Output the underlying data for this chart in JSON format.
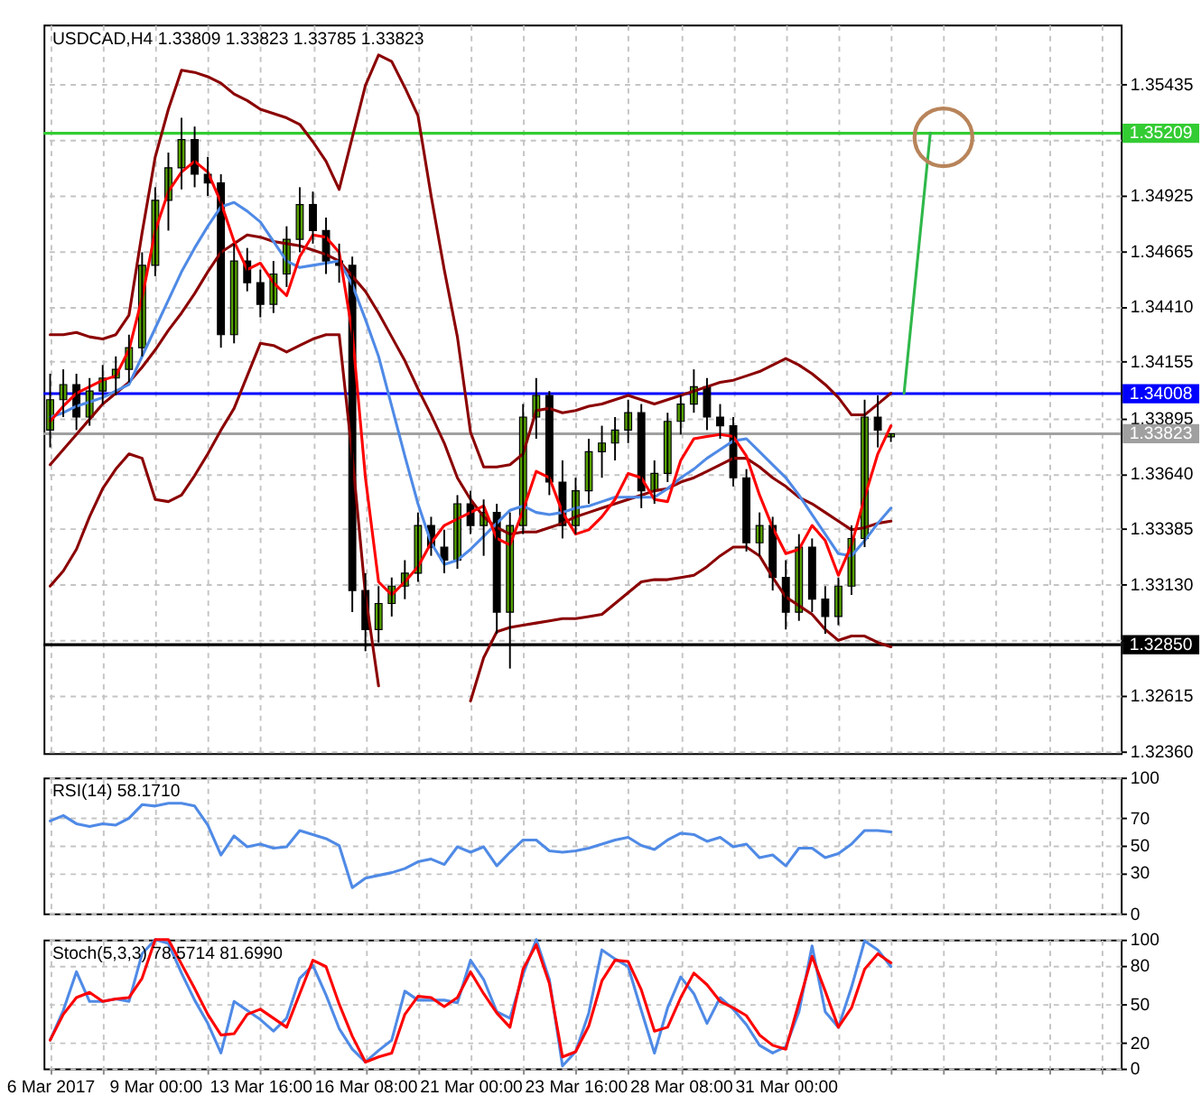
{
  "chart_data": [
    {
      "type": "candlestick",
      "title": "USDCAD,H4  1.33809 1.33823 1.33785 1.33823",
      "categories": [
        null,
        null,
        null,
        null,
        null,
        null,
        null,
        null,
        null,
        null,
        null,
        null,
        null,
        null,
        null,
        null,
        null,
        null,
        null,
        null,
        null,
        null,
        null,
        null,
        null,
        null,
        null,
        null,
        null,
        null,
        null,
        null,
        null,
        null,
        null,
        null,
        null,
        null,
        null,
        null,
        null,
        null,
        null,
        null,
        null,
        null,
        null,
        null,
        null,
        null,
        null,
        null,
        null,
        null,
        null,
        null,
        null,
        null,
        null,
        null,
        null,
        null,
        null,
        null,
        null,
        null,
        null,
        null,
        null,
        null,
        null,
        null,
        null,
        null,
        null,
        null,
        null,
        null,
        null,
        null,
        null,
        null
      ],
      "ohlc": [
        [
          1.3384,
          1.341,
          1.3376,
          1.3398
        ],
        [
          1.3398,
          1.3412,
          1.339,
          1.3405
        ],
        [
          1.3405,
          1.341,
          1.3384,
          1.339
        ],
        [
          1.339,
          1.3408,
          1.3386,
          1.3402
        ],
        [
          1.3402,
          1.3414,
          1.3396,
          1.3408
        ],
        [
          1.3408,
          1.3418,
          1.34,
          1.3412
        ],
        [
          1.3412,
          1.3428,
          1.3406,
          1.3422
        ],
        [
          1.3422,
          1.3466,
          1.3418,
          1.346
        ],
        [
          1.346,
          1.3496,
          1.3455,
          1.349
        ],
        [
          1.349,
          1.3512,
          1.3476,
          1.3505
        ],
        [
          1.3505,
          1.3528,
          1.3495,
          1.3518
        ],
        [
          1.3518,
          1.3524,
          1.3496,
          1.3502
        ],
        [
          1.3502,
          1.351,
          1.3492,
          1.3498
        ],
        [
          1.3498,
          1.3502,
          1.3422,
          1.3428
        ],
        [
          1.3428,
          1.347,
          1.3424,
          1.3462
        ],
        [
          1.3462,
          1.3468,
          1.3448,
          1.3452
        ],
        [
          1.3452,
          1.3458,
          1.3436,
          1.3442
        ],
        [
          1.3442,
          1.3462,
          1.3438,
          1.3456
        ],
        [
          1.3456,
          1.3478,
          1.345,
          1.3472
        ],
        [
          1.3472,
          1.3496,
          1.3466,
          1.3488
        ],
        [
          1.3488,
          1.3494,
          1.347,
          1.3476
        ],
        [
          1.3476,
          1.3482,
          1.3456,
          1.3462
        ],
        [
          1.3462,
          1.347,
          1.3452,
          1.346
        ],
        [
          1.346,
          1.3464,
          1.33,
          1.331
        ],
        [
          1.331,
          1.3318,
          1.3282,
          1.3292
        ],
        [
          1.3292,
          1.3312,
          1.3286,
          1.3304
        ],
        [
          1.3304,
          1.3316,
          1.3298,
          1.3312
        ],
        [
          1.3312,
          1.3324,
          1.3306,
          1.3318
        ],
        [
          1.3318,
          1.3346,
          1.3314,
          1.334
        ],
        [
          1.334,
          1.3344,
          1.3326,
          1.333
        ],
        [
          1.333,
          1.3338,
          1.3318,
          1.3324
        ],
        [
          1.3324,
          1.3354,
          1.332,
          1.335
        ],
        [
          1.335,
          1.3356,
          1.3336,
          1.334
        ],
        [
          1.334,
          1.3352,
          1.3326,
          1.3346
        ],
        [
          1.3346,
          1.335,
          1.329,
          1.33
        ],
        [
          1.33,
          1.3346,
          1.3274,
          1.334
        ],
        [
          1.334,
          1.3396,
          1.3336,
          1.339
        ],
        [
          1.339,
          1.3408,
          1.338,
          1.34
        ],
        [
          1.34,
          1.3402,
          1.3354,
          1.336
        ],
        [
          1.336,
          1.337,
          1.3334,
          1.334
        ],
        [
          1.334,
          1.3362,
          1.3336,
          1.3356
        ],
        [
          1.3356,
          1.338,
          1.335,
          1.3374
        ],
        [
          1.3374,
          1.3386,
          1.3362,
          1.3378
        ],
        [
          1.3378,
          1.339,
          1.337,
          1.3384
        ],
        [
          1.3384,
          1.3398,
          1.3378,
          1.3392
        ],
        [
          1.3392,
          1.3396,
          1.3348,
          1.3356
        ],
        [
          1.3356,
          1.337,
          1.335,
          1.3364
        ],
        [
          1.3364,
          1.3392,
          1.336,
          1.3388
        ],
        [
          1.3388,
          1.34,
          1.3382,
          1.3396
        ],
        [
          1.3396,
          1.3412,
          1.3392,
          1.3404
        ],
        [
          1.3404,
          1.3408,
          1.3384,
          1.339
        ],
        [
          1.339,
          1.3396,
          1.338,
          1.3386
        ],
        [
          1.3386,
          1.339,
          1.3358,
          1.3362
        ],
        [
          1.3362,
          1.3366,
          1.3328,
          1.3332
        ],
        [
          1.3332,
          1.3346,
          1.3326,
          1.334
        ],
        [
          1.334,
          1.3344,
          1.331,
          1.3316
        ],
        [
          1.3316,
          1.3324,
          1.3292,
          1.33
        ],
        [
          1.33,
          1.3336,
          1.3296,
          1.333
        ],
        [
          1.333,
          1.3334,
          1.33,
          1.3306
        ],
        [
          1.3306,
          1.3312,
          1.329,
          1.3298
        ],
        [
          1.3298,
          1.3316,
          1.3294,
          1.3312
        ],
        [
          1.3312,
          1.334,
          1.3308,
          1.3334
        ],
        [
          1.3334,
          1.3398,
          1.333,
          1.339
        ],
        [
          1.339,
          1.34,
          1.3376,
          1.3384
        ],
        [
          1.33809,
          1.33823,
          1.33785,
          1.33823
        ],
        null,
        null,
        null,
        null,
        null,
        null,
        null,
        null,
        null,
        null,
        null,
        null,
        null,
        null,
        null,
        null,
        null
      ],
      "colors": [
        "#55a000",
        "#55a000",
        "#000000",
        "#55a000",
        "#55a000",
        "#55a000",
        "#55a000",
        "#55a000",
        "#55a000",
        "#55a000",
        "#55a000",
        "#000000",
        "#000000",
        "#000000",
        "#55a000",
        "#000000",
        "#000000",
        "#55a000",
        "#55a000",
        "#55a000",
        "#000000",
        "#000000",
        "#000000",
        "#000000",
        "#000000",
        "#55a000",
        "#55a000",
        "#55a000",
        "#55a000",
        "#000000",
        "#000000",
        "#55a000",
        "#000000",
        "#55a000",
        "#000000",
        "#55a000",
        "#55a000",
        "#55a000",
        "#000000",
        "#000000",
        "#55a000",
        "#55a000",
        "#55a000",
        "#55a000",
        "#55a000",
        "#000000",
        "#55a000",
        "#55a000",
        "#55a000",
        "#55a000",
        "#000000",
        "#000000",
        "#000000",
        "#000000",
        "#55a000",
        "#000000",
        "#000000",
        "#55a000",
        "#000000",
        "#000000",
        "#55a000",
        "#55a000",
        "#55a000",
        "#000000",
        "#55a000",
        null,
        null,
        null,
        null,
        null,
        null,
        null,
        null,
        null,
        null,
        null,
        null,
        null,
        null,
        null,
        null,
        null
      ],
      "series": [
        {
          "type": "line",
          "color": "#8b0000",
          "values": [
            1.3428,
            1.3428,
            1.3429,
            1.3427,
            1.3426,
            1.3428,
            1.3437,
            1.3475,
            1.351,
            1.3532,
            1.355,
            1.3549,
            1.3547,
            1.3544,
            1.3539,
            1.3536,
            1.3532,
            1.353,
            1.3528,
            1.3525,
            1.3517,
            1.3508,
            1.3495,
            1.3519,
            1.3543,
            1.3557,
            1.3554,
            1.3542,
            1.3529,
            1.3492,
            1.3458,
            1.3427,
            1.3383,
            1.3367,
            1.3367,
            1.3368,
            1.3373,
            1.3393,
            1.3394,
            1.3392,
            1.3393,
            1.3395,
            1.3396,
            1.3398,
            1.34,
            1.3398,
            1.3396,
            1.3398,
            1.34,
            1.3402,
            1.3404,
            1.3406,
            1.3407,
            1.3409,
            1.3411,
            1.3414,
            1.3417,
            1.3414,
            1.341,
            1.3405,
            1.3399,
            1.3391,
            1.3391,
            1.3396,
            1.3401,
            null,
            null,
            null,
            null,
            null,
            null,
            null,
            null,
            null,
            null,
            null,
            null,
            null,
            null,
            null,
            null,
            null
          ]
        },
        {
          "type": "line",
          "color": "#8b0000",
          "values": [
            1.3312,
            1.3319,
            1.3329,
            1.3344,
            1.3357,
            1.3366,
            1.3373,
            1.3371,
            1.3352,
            1.3351,
            1.3354,
            1.3363,
            1.3373,
            1.3384,
            1.3394,
            1.3409,
            1.3424,
            1.3423,
            1.342,
            1.3423,
            1.3426,
            1.3428,
            1.3428,
            1.3372,
            1.3308,
            1.3266,
            null,
            null,
            null,
            null,
            null,
            null,
            1.3259,
            1.3279,
            1.3291,
            1.3293,
            1.3294,
            1.3295,
            1.3296,
            1.3297,
            1.3297,
            1.3298,
            1.3299,
            1.3304,
            1.3309,
            1.3314,
            1.3315,
            1.3315,
            1.3316,
            1.3317,
            1.3321,
            1.3326,
            1.333,
            1.333,
            1.3326,
            1.3316,
            1.3307,
            1.3303,
            1.3299,
            1.3292,
            1.3287,
            1.3289,
            1.3289,
            1.3286,
            1.3284,
            null,
            null,
            null,
            null,
            null,
            null,
            null,
            null,
            null,
            null,
            null,
            null,
            null,
            null,
            null,
            null,
            null
          ]
        },
        {
          "type": "line",
          "color": "#8b0000",
          "values": [
            1.3368,
            1.3375,
            1.3382,
            1.3389,
            1.3396,
            1.3401,
            1.3406,
            1.3413,
            1.3421,
            1.343,
            1.3438,
            1.3447,
            1.3457,
            1.3466,
            1.347,
            1.3474,
            1.3473,
            1.3471,
            1.347,
            1.3469,
            1.3467,
            1.3465,
            1.3462,
            1.3455,
            1.3448,
            1.3438,
            1.3427,
            1.3416,
            1.3403,
            1.3391,
            1.3378,
            1.3362,
            1.3352,
            1.3344,
            1.3339,
            1.3336,
            1.3337,
            1.3337,
            1.3339,
            1.3341,
            1.3344,
            1.3346,
            1.3348,
            1.335,
            1.3352,
            1.3354,
            1.3356,
            1.3357,
            1.336,
            1.3362,
            1.3365,
            1.3368,
            1.3371,
            1.3371,
            1.3367,
            1.3362,
            1.3358,
            1.3353,
            1.335,
            1.3346,
            1.3342,
            1.3338,
            1.3339,
            1.3341,
            1.3342,
            null,
            null,
            null,
            null,
            null,
            null,
            null,
            null,
            null,
            null,
            null,
            null,
            null,
            null,
            null,
            null,
            null
          ]
        },
        {
          "type": "line",
          "color": "#4f8ae6",
          "values": [
            1.339,
            1.3392,
            1.3395,
            1.3397,
            1.3399,
            1.3402,
            1.3405,
            1.3418,
            1.3431,
            1.3444,
            1.3457,
            1.3468,
            1.3478,
            1.3487,
            1.3489,
            1.3485,
            1.348,
            1.3471,
            1.3462,
            1.3459,
            1.346,
            1.3461,
            1.3462,
            1.3451,
            1.3435,
            1.3418,
            1.3395,
            1.3372,
            1.335,
            1.3332,
            1.3322,
            1.3324,
            1.3329,
            1.3335,
            1.3341,
            1.3347,
            1.3349,
            1.3346,
            1.3345,
            1.3346,
            1.3348,
            1.3349,
            1.3351,
            1.3353,
            1.3353,
            1.3353,
            1.3353,
            1.3357,
            1.3362,
            1.3366,
            1.3371,
            1.3375,
            1.3379,
            1.338,
            1.3374,
            1.3368,
            1.3362,
            1.3354,
            1.3345,
            1.3336,
            1.3327,
            1.3326,
            1.3333,
            1.3341,
            1.3348,
            null,
            null,
            null,
            null,
            null,
            null,
            null,
            null,
            null,
            null,
            null,
            null,
            null,
            null,
            null,
            null,
            null
          ]
        },
        {
          "type": "line",
          "color": "#ff0000",
          "values": [
            1.3388,
            1.3395,
            1.3401,
            1.3404,
            1.3407,
            1.3409,
            1.3421,
            1.3445,
            1.3476,
            1.3494,
            1.3503,
            1.3508,
            1.3503,
            1.3489,
            1.3471,
            1.3458,
            1.3461,
            1.3452,
            1.3446,
            1.3464,
            1.3474,
            1.3473,
            1.3466,
            1.3429,
            1.3362,
            1.3314,
            1.3308,
            1.3314,
            1.3321,
            1.3332,
            1.334,
            1.3343,
            1.3346,
            1.3349,
            1.3334,
            1.3331,
            1.3347,
            1.3365,
            1.3362,
            1.3346,
            1.3336,
            1.3338,
            1.3344,
            1.3352,
            1.3364,
            1.3362,
            1.3352,
            1.3351,
            1.337,
            1.338,
            1.3381,
            1.3382,
            1.3381,
            1.3372,
            1.3354,
            1.3339,
            1.3327,
            1.3329,
            1.334,
            1.3333,
            1.3317,
            1.3331,
            1.3353,
            1.3373,
            1.3386,
            null,
            null,
            null,
            null,
            null,
            null,
            null,
            null,
            null,
            null,
            null,
            null,
            null,
            null,
            null,
            null,
            null
          ]
        },
        {
          "type": "line",
          "color": "#2fb84a",
          "values": [
            null,
            null,
            null,
            null,
            null,
            null,
            null,
            null,
            null,
            null,
            null,
            null,
            null,
            null,
            null,
            null,
            null,
            null,
            null,
            null,
            null,
            null,
            null,
            null,
            null,
            null,
            null,
            null,
            null,
            null,
            null,
            null,
            null,
            null,
            null,
            null,
            null,
            null,
            null,
            null,
            null,
            null,
            null,
            null,
            null,
            null,
            null,
            null,
            null,
            null,
            null,
            null,
            null,
            null,
            null,
            null,
            null,
            null,
            null,
            null,
            null,
            null,
            null,
            null,
            null,
            1.3401,
            1.3461,
            1.3521,
            null,
            null,
            null,
            null,
            null,
            null,
            null,
            null,
            null,
            null,
            null,
            null,
            null,
            null
          ]
        },
        {
          "type": "scatter",
          "color": "#b8845a",
          "marker": "circle",
          "values": [
            null,
            null,
            null,
            null,
            null,
            null,
            null,
            null,
            null,
            null,
            null,
            null,
            null,
            null,
            null,
            null,
            null,
            null,
            null,
            null,
            null,
            null,
            null,
            null,
            null,
            null,
            null,
            null,
            null,
            null,
            null,
            null,
            null,
            null,
            null,
            null,
            null,
            null,
            null,
            null,
            null,
            null,
            null,
            null,
            null,
            null,
            null,
            null,
            null,
            null,
            null,
            null,
            null,
            null,
            null,
            null,
            null,
            null,
            null,
            null,
            null,
            null,
            null,
            null,
            null,
            null,
            null,
            null,
            1.3519,
            null,
            null,
            null,
            null,
            null,
            null,
            null,
            null,
            null,
            null,
            null,
            null,
            null
          ]
        }
      ],
      "ref_lines": [
        {
          "axis": "y",
          "value": 1.35209,
          "label": "1.35209",
          "color": "#33cc33"
        },
        {
          "axis": "y",
          "value": 1.34008,
          "label": "1.34008",
          "color": "#0000ff"
        },
        {
          "axis": "y",
          "value": 1.33823,
          "label": "1.33823",
          "color": "#a0a0a0"
        },
        {
          "axis": "y",
          "value": 1.3285,
          "label": "1.32850",
          "color": "#000000"
        }
      ],
      "ylim": [
        1.3235,
        1.3571
      ],
      "yticks": [
        {
          "value": 1.3236,
          "label": "1.32360"
        },
        {
          "value": 1.32615,
          "label": "1.32615"
        },
        {
          "value": 1.32875,
          "label": null
        },
        {
          "value": 1.3313,
          "label": "1.33130"
        },
        {
          "value": 1.33385,
          "label": "1.33385"
        },
        {
          "value": 1.3364,
          "label": "1.33640"
        },
        {
          "value": 1.33895,
          "label": "1.33895"
        },
        {
          "value": 1.34155,
          "label": "1.34155"
        },
        {
          "value": 1.3441,
          "label": "1.34410"
        },
        {
          "value": 1.34665,
          "label": "1.34665"
        },
        {
          "value": 1.34925,
          "label": "1.34925"
        },
        {
          "value": 1.3518,
          "label": null
        },
        {
          "value": 1.35435,
          "label": "1.35435"
        }
      ],
      "grid": true,
      "tick_labels": "y"
    },
    {
      "type": "line",
      "title": "RSI(14) 58.1710",
      "categories": [
        null,
        null,
        null,
        null,
        null,
        null,
        null,
        null,
        null,
        null,
        null,
        null,
        null,
        null,
        null,
        null,
        null,
        null,
        null,
        null,
        null,
        null,
        null,
        null,
        null,
        null,
        null,
        null,
        null,
        null,
        null,
        null,
        null,
        null,
        null,
        null,
        null,
        null,
        null,
        null,
        null,
        null,
        null,
        null,
        null,
        null,
        null,
        null,
        null,
        null,
        null,
        null,
        null,
        null,
        null,
        null,
        null,
        null,
        null,
        null,
        null,
        null,
        null,
        null,
        null,
        null,
        null,
        null,
        null,
        null,
        null,
        null,
        null,
        null,
        null,
        null,
        null,
        null,
        null,
        null,
        null,
        null
      ],
      "series": [
        {
          "color": "#4f8ae6",
          "values": [
            68,
            72,
            66,
            64,
            66,
            65,
            70,
            80,
            79,
            81,
            81,
            79,
            65,
            43,
            57,
            49,
            51,
            48,
            49,
            61,
            58,
            55,
            50,
            19,
            26,
            28,
            30,
            33,
            38,
            40,
            36,
            49,
            45,
            49,
            35,
            45,
            54,
            54,
            46,
            45,
            46,
            48,
            51,
            54,
            56,
            50,
            47,
            54,
            59,
            58,
            53,
            56,
            49,
            51,
            41,
            43,
            35,
            48,
            48,
            41,
            44,
            51,
            61,
            61,
            60,
            null,
            null,
            null,
            null,
            null,
            null,
            null,
            null,
            null,
            null,
            null,
            null,
            null,
            null,
            null,
            null,
            null
          ]
        }
      ],
      "ylim": [
        0,
        100
      ],
      "yticks": [
        0,
        30,
        50,
        70,
        100
      ],
      "grid": true,
      "tick_labels": "y"
    },
    {
      "type": "line",
      "title": "Stoch(5,3,3) 78.5714 81.6990",
      "categories": [
        "6 Mar 2017",
        null,
        null,
        null,
        null,
        null,
        null,
        null,
        "9 Mar 00:00",
        null,
        null,
        null,
        null,
        null,
        null,
        null,
        "13 Mar 16:00",
        null,
        null,
        null,
        null,
        null,
        null,
        null,
        "16 Mar 08:00",
        null,
        null,
        null,
        null,
        null,
        null,
        null,
        "21 Mar 00:00",
        null,
        null,
        null,
        null,
        null,
        null,
        null,
        "23 Mar 16:00",
        null,
        null,
        null,
        null,
        null,
        null,
        null,
        "28 Mar 08:00",
        null,
        null,
        null,
        null,
        null,
        null,
        null,
        "31 Mar 00:00",
        null,
        null,
        null,
        null,
        null,
        null,
        null,
        null,
        null,
        null,
        null,
        null,
        null,
        null,
        null,
        null,
        null,
        null,
        null,
        null,
        null,
        null,
        null,
        null,
        null
      ],
      "series": [
        {
          "color": "#4f8ae6",
          "values": [
            22,
            45,
            75,
            52,
            52,
            54,
            52,
            89,
            100,
            97,
            74,
            53,
            35,
            12,
            52,
            45,
            38,
            29,
            39,
            70,
            80,
            57,
            31,
            15,
            5,
            14,
            22,
            60,
            53,
            53,
            53,
            51,
            84,
            69,
            44,
            39,
            73,
            100,
            69,
            2,
            13,
            43,
            92,
            85,
            79,
            45,
            12,
            47,
            71,
            58,
            35,
            55,
            46,
            34,
            18,
            12,
            17,
            44,
            95,
            44,
            32,
            63,
            99,
            92,
            79,
            null,
            null,
            null,
            null,
            null,
            null,
            null,
            null,
            null,
            null,
            null,
            null,
            null,
            null,
            null,
            null,
            null
          ]
        },
        {
          "color": "#ff0000",
          "values": [
            22,
            42,
            55,
            59,
            52,
            54,
            55,
            70,
            100,
            100,
            81,
            62,
            42,
            26,
            27,
            42,
            46,
            39,
            32,
            58,
            84,
            79,
            50,
            25,
            5,
            9,
            12,
            42,
            56,
            55,
            48,
            55,
            75,
            58,
            43,
            32,
            77,
            96,
            66,
            9,
            13,
            33,
            68,
            84,
            83,
            61,
            29,
            32,
            55,
            74,
            65,
            52,
            47,
            41,
            26,
            18,
            15,
            51,
            87,
            60,
            32,
            47,
            77,
            89,
            82,
            null,
            null,
            null,
            null,
            null,
            null,
            null,
            null,
            null,
            null,
            null,
            null,
            null,
            null,
            null,
            null,
            null
          ]
        }
      ],
      "ylim": [
        0,
        100
      ],
      "yticks": [
        0,
        20,
        50,
        80,
        100
      ],
      "grid": true
    }
  ]
}
